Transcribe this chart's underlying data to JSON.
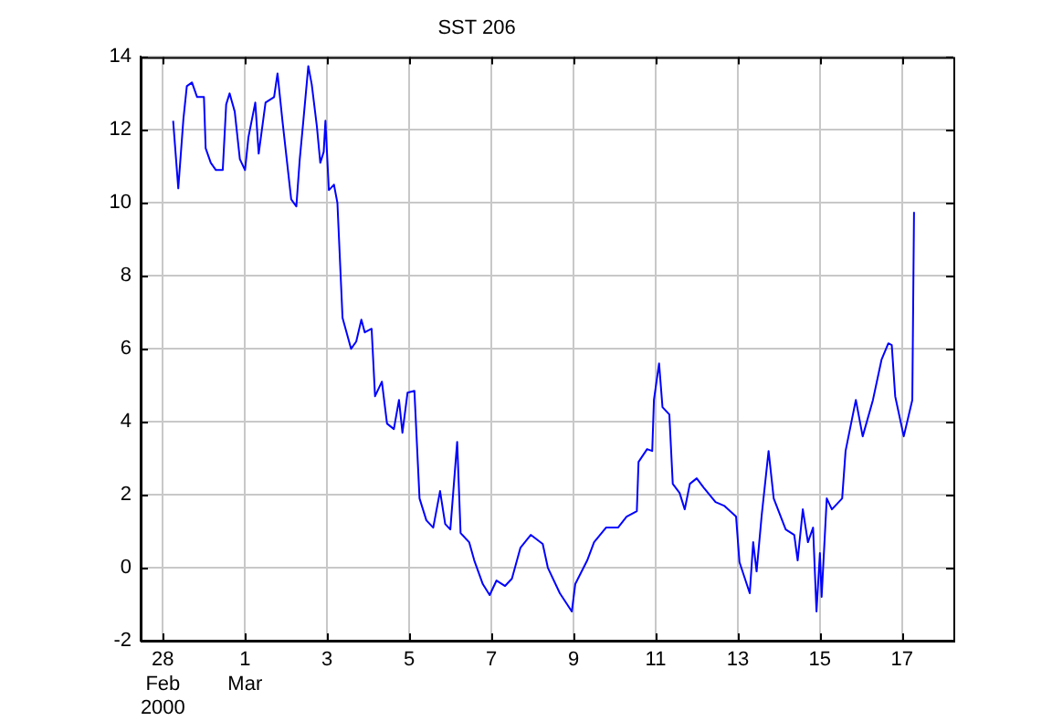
{
  "chart_data": {
    "type": "line",
    "title": "SST 206",
    "x": [
      "2000-02-28T06:00",
      "2000-02-28T09:00",
      "2000-02-28T12:00",
      "2000-02-28T14:00",
      "2000-02-28T17:00",
      "2000-02-28T20:00",
      "2000-02-29T00:00",
      "2000-02-29T01:00",
      "2000-02-29T04:00",
      "2000-02-29T07:00",
      "2000-02-29T11:00",
      "2000-02-29T13:00",
      "2000-02-29T15:00",
      "2000-02-29T18:00",
      "2000-02-29T21:00",
      "2000-03-01T00:00",
      "2000-03-01T02:00",
      "2000-03-01T06:00",
      "2000-03-01T08:00",
      "2000-03-01T12:00",
      "2000-03-01T17:00",
      "2000-03-01T19:00",
      "2000-03-01T22:00",
      "2000-03-02T03:00",
      "2000-03-02T06:00",
      "2000-03-02T08:00",
      "2000-03-02T10:00",
      "2000-03-02T13:00",
      "2000-03-02T15:00",
      "2000-03-02T18:00",
      "2000-03-02T20:00",
      "2000-03-02T22:00",
      "2000-03-02T23:00",
      "2000-03-03T01:00",
      "2000-03-03T04:00",
      "2000-03-03T06:00",
      "2000-03-03T09:00",
      "2000-03-03T14:00",
      "2000-03-03T17:00",
      "2000-03-03T20:00",
      "2000-03-03T22:00",
      "2000-03-04T02:00",
      "2000-03-04T04:00",
      "2000-03-04T08:00",
      "2000-03-04T11:00",
      "2000-03-04T15:00",
      "2000-03-04T18:00",
      "2000-03-04T20:00",
      "2000-03-04T23:00",
      "2000-03-05T03:00",
      "2000-03-05T06:00",
      "2000-03-05T10:00",
      "2000-03-05T14:00",
      "2000-03-05T18:00",
      "2000-03-05T21:00",
      "2000-03-06T00:00",
      "2000-03-06T04:00",
      "2000-03-06T06:00",
      "2000-03-06T11:00",
      "2000-03-06T14:00",
      "2000-03-06T19:00",
      "2000-03-06T23:00",
      "2000-03-07T03:00",
      "2000-03-07T08:00",
      "2000-03-07T12:00",
      "2000-03-07T17:00",
      "2000-03-07T23:00",
      "2000-03-08T06:00",
      "2000-03-08T09:00",
      "2000-03-08T16:00",
      "2000-03-08T23:00",
      "2000-03-09T01:00",
      "2000-03-09T08:00",
      "2000-03-09T12:00",
      "2000-03-09T19:00",
      "2000-03-10T02:00",
      "2000-03-10T07:00",
      "2000-03-10T13:00",
      "2000-03-10T14:00",
      "2000-03-10T19:00",
      "2000-03-10T22:00",
      "2000-03-10T23:00",
      "2000-03-11T02:00",
      "2000-03-11T04:00",
      "2000-03-11T08:00",
      "2000-03-11T10:00",
      "2000-03-11T14:00",
      "2000-03-11T17:00",
      "2000-03-11T20:00",
      "2000-03-12T00:00",
      "2000-03-12T04:00",
      "2000-03-12T11:00",
      "2000-03-12T16:00",
      "2000-03-12T23:00",
      "2000-03-13T01:00",
      "2000-03-13T07:00",
      "2000-03-13T09:00",
      "2000-03-13T11:00",
      "2000-03-13T14:00",
      "2000-03-13T18:00",
      "2000-03-13T21:00",
      "2000-03-14T04:00",
      "2000-03-14T09:00",
      "2000-03-14T11:00",
      "2000-03-14T14:00",
      "2000-03-14T17:00",
      "2000-03-14T20:00",
      "2000-03-14T22:00",
      "2000-03-15T00:00",
      "2000-03-15T01:00",
      "2000-03-15T04:00",
      "2000-03-15T07:00",
      "2000-03-15T13:00",
      "2000-03-15T15:00",
      "2000-03-15T21:00",
      "2000-03-16T01:00",
      "2000-03-16T07:00",
      "2000-03-16T12:00",
      "2000-03-16T16:00",
      "2000-03-16T18:00",
      "2000-03-16T20:00",
      "2000-03-17T01:00",
      "2000-03-17T06:00",
      "2000-03-17T07:00"
    ],
    "values": [
      12.25,
      10.4,
      12.3,
      13.2,
      13.3,
      12.9,
      12.9,
      11.5,
      11.1,
      10.9,
      10.9,
      12.7,
      13.0,
      12.5,
      11.2,
      10.9,
      11.8,
      12.75,
      11.35,
      12.75,
      12.9,
      13.55,
      12.2,
      10.1,
      9.9,
      11.2,
      12.2,
      13.75,
      13.25,
      12.1,
      11.1,
      11.4,
      12.25,
      10.35,
      10.5,
      10.0,
      6.85,
      6.0,
      6.2,
      6.8,
      6.45,
      6.55,
      4.7,
      5.1,
      3.95,
      3.8,
      4.6,
      3.7,
      4.8,
      4.85,
      1.9,
      1.3,
      1.1,
      2.1,
      1.2,
      1.05,
      3.45,
      0.95,
      0.7,
      0.2,
      -0.45,
      -0.75,
      -0.35,
      -0.5,
      -0.3,
      0.55,
      0.9,
      0.65,
      0.0,
      -0.7,
      -1.2,
      -0.45,
      0.2,
      0.7,
      1.1,
      1.1,
      1.4,
      1.55,
      2.9,
      3.25,
      3.2,
      4.6,
      5.6,
      4.4,
      4.2,
      2.3,
      2.05,
      1.6,
      2.3,
      2.45,
      2.2,
      1.8,
      1.7,
      1.4,
      0.15,
      -0.7,
      0.7,
      -0.1,
      1.45,
      3.2,
      1.9,
      1.05,
      0.9,
      0.2,
      1.6,
      0.7,
      1.1,
      -1.2,
      0.4,
      -0.8,
      1.9,
      1.6,
      1.9,
      3.2,
      4.6,
      3.6,
      4.6,
      5.7,
      6.15,
      6.1,
      4.7,
      3.6,
      4.6,
      9.75
    ],
    "color": "#0000ff",
    "xlim": [
      "2000-02-27T11:00",
      "2000-03-18T06:00"
    ],
    "xticks": [
      {
        "value": "2000-02-28",
        "label": "28\nFeb\n2000"
      },
      {
        "value": "2000-03-01",
        "label": "1\nMar"
      },
      {
        "value": "2000-03-03",
        "label": "3"
      },
      {
        "value": "2000-03-05",
        "label": "5"
      },
      {
        "value": "2000-03-07",
        "label": "7"
      },
      {
        "value": "2000-03-09",
        "label": "9"
      },
      {
        "value": "2000-03-11",
        "label": "11"
      },
      {
        "value": "2000-03-13",
        "label": "13"
      },
      {
        "value": "2000-03-15",
        "label": "15"
      },
      {
        "value": "2000-03-17",
        "label": "17"
      }
    ],
    "ylim": [
      -2,
      14
    ],
    "yticks": [
      -2,
      0,
      2,
      4,
      6,
      8,
      10,
      12,
      14
    ],
    "grid": true,
    "line_style": "solid",
    "marker": "none",
    "legend": false
  }
}
